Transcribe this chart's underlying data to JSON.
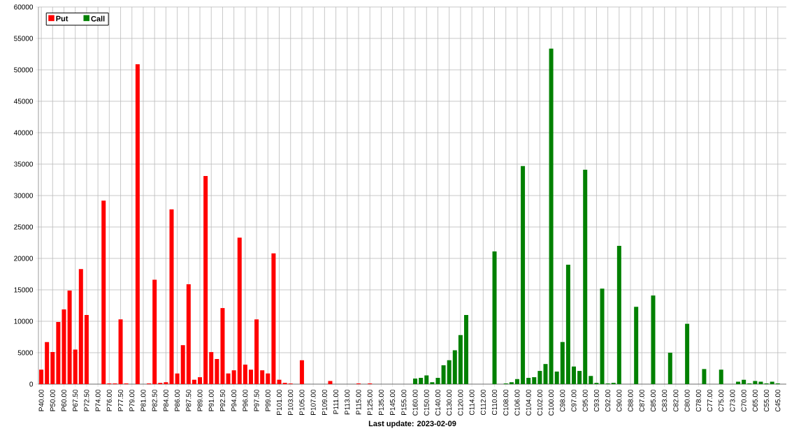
{
  "chart_data": {
    "type": "bar",
    "xlabel": "Last update: 2023-02-09",
    "categories": [
      "P40.00",
      null,
      "P50.00",
      null,
      "P60.00",
      null,
      "P67.50",
      null,
      "P72.50",
      null,
      "P74.00",
      null,
      "P76.00",
      null,
      "P77.50",
      null,
      "P79.00",
      null,
      "P81.00",
      null,
      "P82.50",
      null,
      "P84.00",
      null,
      "P86.00",
      null,
      "P87.50",
      null,
      "P89.00",
      null,
      "P91.00",
      null,
      "P92.50",
      null,
      "P94.00",
      null,
      "P96.00",
      null,
      "P97.50",
      null,
      "P99.00",
      null,
      "P101.00",
      null,
      "P103.00",
      null,
      "P105.00",
      null,
      "P107.00",
      null,
      "P109.00",
      null,
      "P111.00",
      null,
      "P113.00",
      null,
      "P115.00",
      null,
      "P125.00",
      null,
      "P135.00",
      null,
      "P145.00",
      null,
      "P155.00",
      null,
      "C160.00",
      null,
      "C150.00",
      null,
      "C140.00",
      null,
      "C130.00",
      null,
      "C120.00",
      null,
      "C114.00",
      null,
      "C112.00",
      null,
      "C110.00",
      null,
      "C108.00",
      null,
      "C106.00",
      null,
      "C104.00",
      null,
      "C102.00",
      null,
      "C100.00",
      null,
      "C98.00",
      null,
      "C97.00",
      null,
      "C95.00",
      null,
      "C93.00",
      null,
      "C92.00",
      null,
      "C90.00",
      null,
      "C88.00",
      null,
      "C87.00",
      null,
      "C85.00",
      null,
      "C83.00",
      null,
      "C82.00",
      null,
      "C80.00",
      null,
      "C78.00",
      null,
      "C77.00",
      null,
      "C75.00",
      null,
      "C73.00",
      null,
      "C70.00",
      null,
      "C65.00",
      null,
      "C55.00",
      null,
      "C45.00",
      null
    ],
    "series": [
      {
        "name": "Put",
        "color": "#ff0000",
        "values": [
          2300,
          6700,
          5100,
          9900,
          11900,
          14900,
          5500,
          18300,
          11000,
          null,
          null,
          29200,
          100,
          100,
          10300,
          100,
          null,
          50900,
          null,
          100,
          16600,
          200,
          300,
          27800,
          1700,
          6200,
          15900,
          700,
          1100,
          33100,
          5100,
          4000,
          12100,
          1700,
          2200,
          23300,
          3100,
          2300,
          10300,
          2200,
          1700,
          20800,
          700,
          200,
          100,
          null,
          3800,
          null,
          null,
          null,
          null,
          500,
          null,
          null,
          null,
          null,
          100,
          null,
          100,
          null,
          null,
          null,
          null,
          null,
          null,
          null,
          null,
          null,
          null,
          null,
          null,
          null,
          null,
          null,
          null,
          null,
          null,
          null,
          null,
          null,
          null,
          null,
          null,
          null,
          null,
          null,
          null,
          null,
          null,
          null,
          null,
          null,
          null,
          null,
          null,
          null,
          null,
          null,
          null,
          null,
          null,
          null,
          null,
          null,
          null,
          null,
          null,
          null,
          null,
          null,
          null,
          null,
          null,
          null,
          null,
          null,
          null,
          null,
          null,
          null,
          null,
          null,
          null,
          null,
          null,
          null,
          null,
          null,
          null,
          null,
          null,
          null
        ]
      },
      {
        "name": "Call",
        "color": "#008000",
        "values": [
          null,
          null,
          null,
          null,
          null,
          null,
          null,
          null,
          null,
          null,
          null,
          null,
          null,
          null,
          null,
          null,
          null,
          null,
          null,
          null,
          null,
          null,
          null,
          null,
          null,
          null,
          null,
          null,
          null,
          null,
          null,
          null,
          null,
          null,
          null,
          null,
          null,
          null,
          null,
          null,
          null,
          null,
          null,
          null,
          null,
          null,
          null,
          null,
          null,
          null,
          null,
          null,
          null,
          null,
          null,
          null,
          null,
          null,
          null,
          null,
          null,
          null,
          null,
          null,
          null,
          null,
          900,
          1000,
          1400,
          300,
          1000,
          3000,
          3800,
          5400,
          7800,
          11000,
          null,
          null,
          null,
          null,
          21100,
          null,
          100,
          300,
          800,
          34700,
          1000,
          1100,
          2100,
          3200,
          53400,
          2000,
          6700,
          19000,
          2800,
          2100,
          34100,
          1300,
          200,
          15200,
          100,
          200,
          22000,
          null,
          null,
          12300,
          null,
          null,
          14100,
          null,
          null,
          5000,
          null,
          null,
          9600,
          null,
          null,
          2400,
          null,
          null,
          2300,
          null,
          null,
          400,
          700,
          100,
          500,
          400,
          100,
          400,
          100,
          null
        ]
      }
    ],
    "ylim": [
      0,
      60000
    ],
    "yticks": [
      0,
      5000,
      10000,
      15000,
      20000,
      25000,
      30000,
      35000,
      40000,
      45000,
      50000,
      55000,
      60000
    ],
    "grid": true,
    "legend": "top left"
  }
}
